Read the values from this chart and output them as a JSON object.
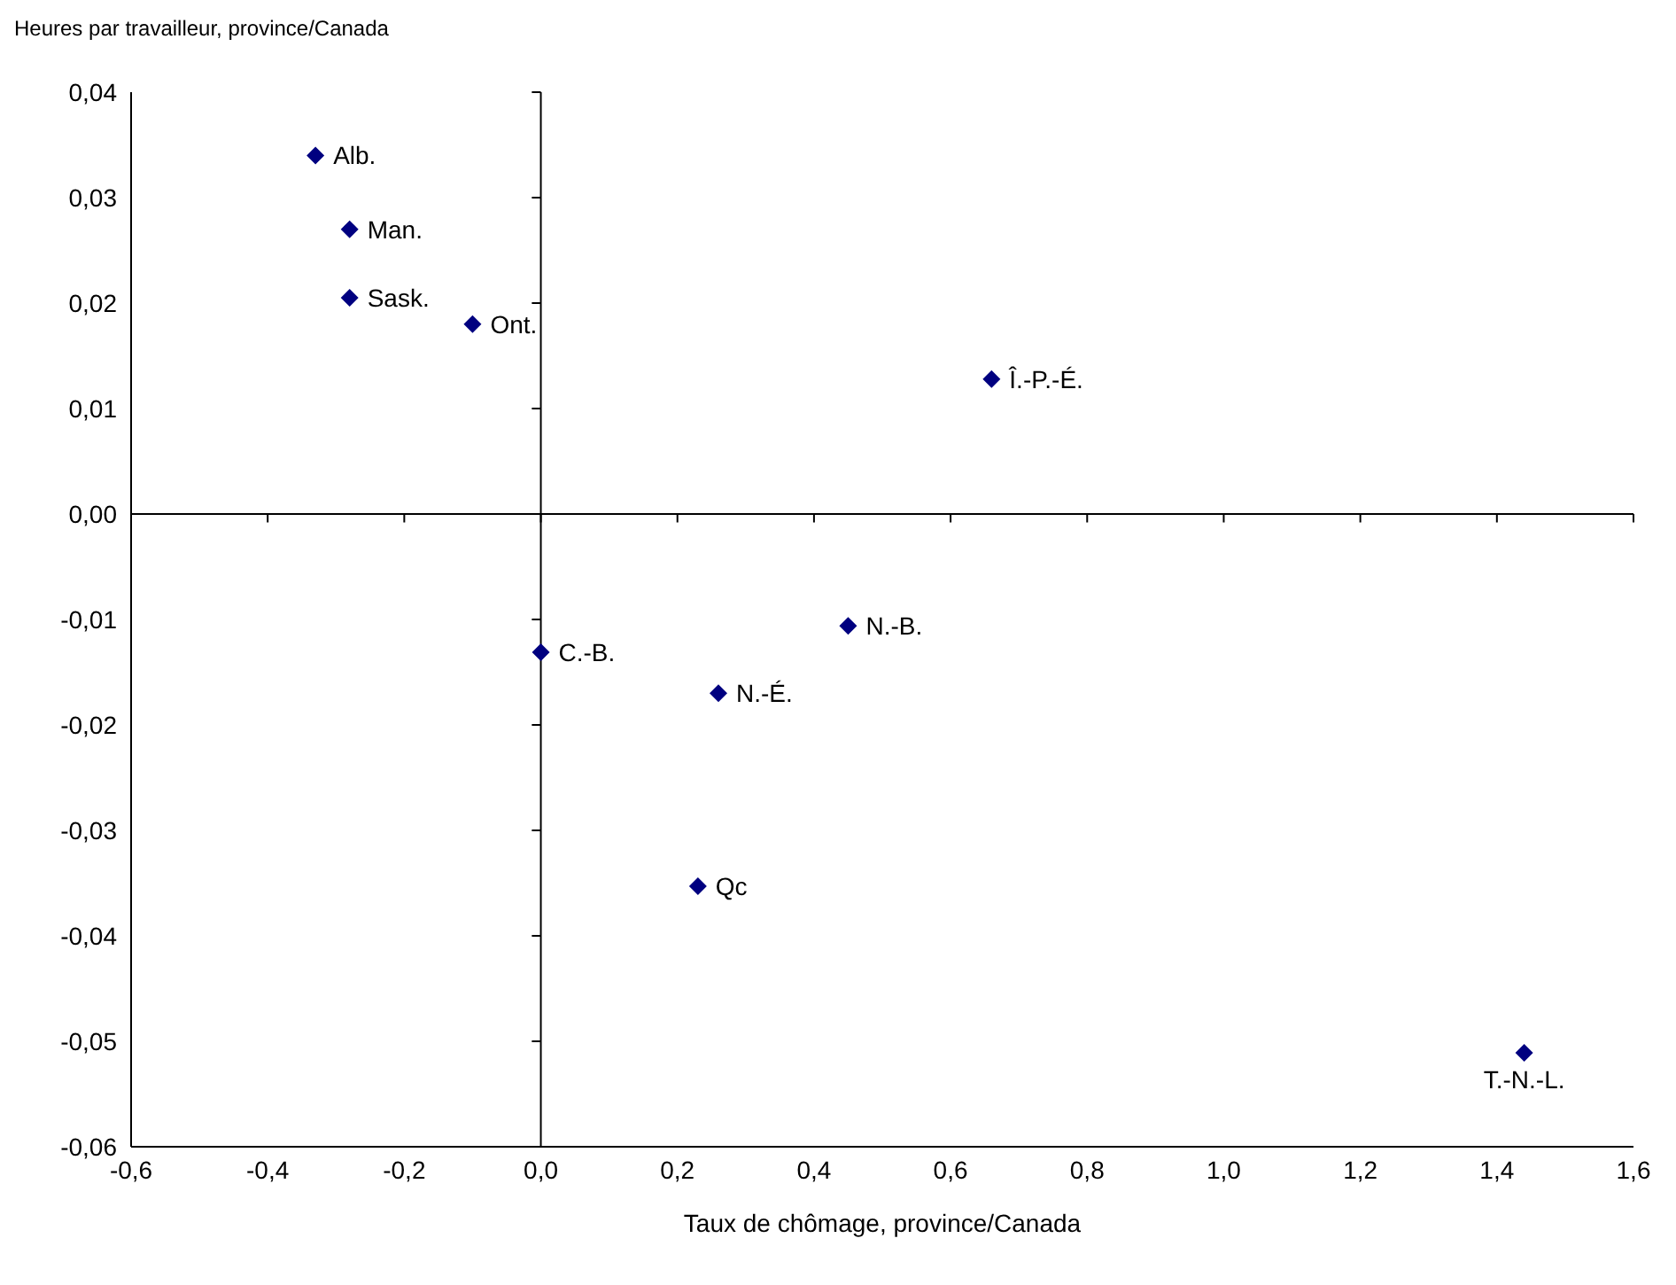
{
  "chart_data": {
    "type": "scatter",
    "xlabel": "Taux de chômage, province/Canada",
    "ylabel": "Heures par travailleur, province/Canada",
    "series": [
      {
        "color": "#000080",
        "x": [
          -0.33,
          -0.28,
          -0.28,
          -0.1,
          0.66,
          0.0,
          0.45,
          0.26,
          0.23,
          1.44
        ],
        "values": [
          0.034,
          0.027,
          0.0205,
          0.018,
          0.0128,
          -0.0131,
          -0.0106,
          -0.017,
          -0.0353,
          -0.0511
        ],
        "value_labels": [
          "Alb.",
          "Man.",
          "Sask.",
          "Ont.",
          "Î.-P.-É.",
          "C.-B.",
          "N.-B.",
          "N.-É.",
          "Qc",
          "T.-N.-L."
        ]
      }
    ],
    "xlim": [
      -0.6,
      1.6
    ],
    "xticks": [
      {
        "value": -0.6,
        "label": "-0,6"
      },
      {
        "value": -0.4,
        "label": "-0,4"
      },
      {
        "value": -0.2,
        "label": "-0,2"
      },
      {
        "value": 0,
        "label": "0,0"
      },
      {
        "value": 0.2,
        "label": "0,2"
      },
      {
        "value": 0.4,
        "label": "0,4"
      },
      {
        "value": 0.6,
        "label": "0,6"
      },
      {
        "value": 0.8,
        "label": "0,8"
      },
      {
        "value": 1.0,
        "label": "1,0"
      },
      {
        "value": 1.2,
        "label": "1,2"
      },
      {
        "value": 1.4,
        "label": "1,4"
      },
      {
        "value": 1.6,
        "label": "1,6"
      }
    ],
    "ylim": [
      -0.06,
      0.04
    ],
    "yticks": [
      {
        "value": -0.06,
        "label": "-0,06"
      },
      {
        "value": -0.05,
        "label": "-0,05"
      },
      {
        "value": -0.04,
        "label": "-0,04"
      },
      {
        "value": -0.03,
        "label": "-0,03"
      },
      {
        "value": -0.02,
        "label": "-0,02"
      },
      {
        "value": -0.01,
        "label": "-0,01"
      },
      {
        "value": 0,
        "label": "0,00"
      },
      {
        "value": 0.01,
        "label": "0,01"
      },
      {
        "value": 0.02,
        "label": "0,02"
      },
      {
        "value": 0.03,
        "label": "0,03"
      },
      {
        "value": 0.04,
        "label": "0,04"
      }
    ],
    "marker": "diamond"
  }
}
